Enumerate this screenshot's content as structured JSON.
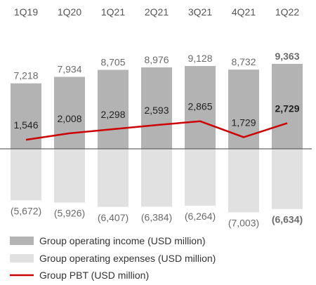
{
  "chart_data": {
    "type": "bar",
    "categories": [
      "1Q19",
      "1Q20",
      "1Q21",
      "2Q21",
      "3Q21",
      "4Q21",
      "1Q22"
    ],
    "series": [
      {
        "name": "Group operating income (USD million)",
        "type": "bar",
        "values": [
          7218,
          7934,
          8705,
          8976,
          9128,
          8732,
          9363
        ],
        "labels": [
          "7,218",
          "7,934",
          "8,705",
          "8,976",
          "9,128",
          "8,732",
          "9,363"
        ],
        "color": "#b3b3b3"
      },
      {
        "name": "Group operating expenses (USD million)",
        "type": "bar",
        "values": [
          -5672,
          -5926,
          -6407,
          -6384,
          -6264,
          -7003,
          -6634
        ],
        "labels": [
          "(5,672)",
          "(5,926)",
          "(6,407)",
          "(6,384)",
          "(6,264)",
          "(7,003)",
          "(6,634)"
        ],
        "color": "#e1e1e1"
      },
      {
        "name": "Group PBT (USD million)",
        "type": "line",
        "values": [
          1546,
          2008,
          2298,
          2593,
          2865,
          1729,
          2729
        ],
        "labels": [
          "1,546",
          "2,008",
          "2,298",
          "2,593",
          "2,865",
          "1,729",
          "2,729"
        ],
        "color": "#cc0000"
      }
    ],
    "highlight_category": "1Q22",
    "axis_baseline": 0
  }
}
